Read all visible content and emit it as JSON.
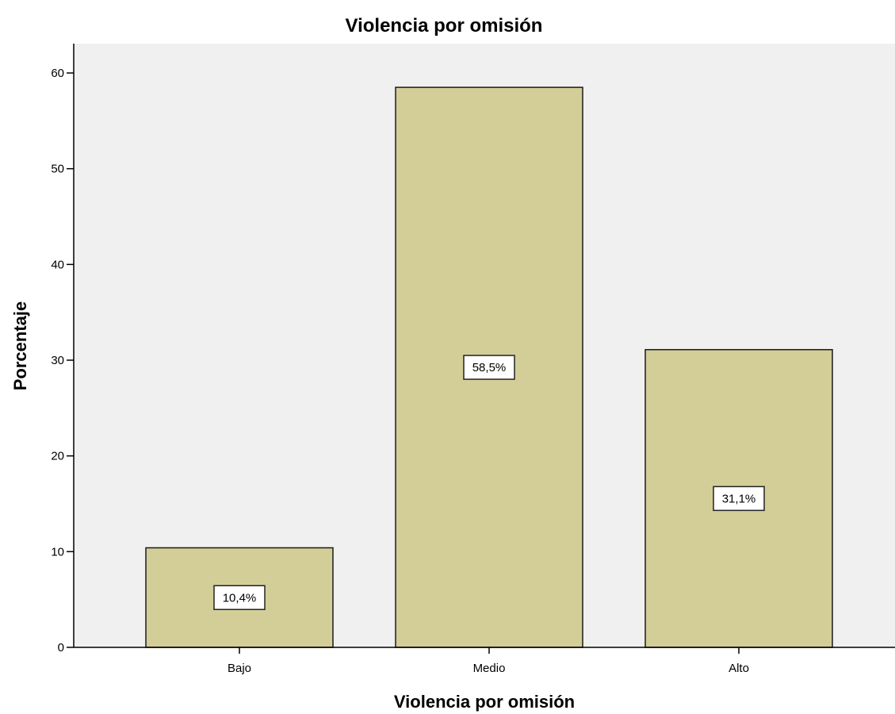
{
  "chart_data": {
    "type": "bar",
    "title": "Violencia por omisión",
    "xlabel": "Violencia por omisión",
    "ylabel": "Porcentaje",
    "categories": [
      "Bajo",
      "Medio",
      "Alto"
    ],
    "values": [
      10.4,
      58.5,
      31.1
    ],
    "data_labels": [
      "10,4%",
      "58,5%",
      "31,1%"
    ],
    "ylim": [
      0,
      63
    ],
    "yticks": [
      0,
      10,
      20,
      30,
      40,
      50,
      60
    ],
    "grid": false,
    "legend": "none",
    "colors": {
      "bar_fill": "#d3ce98",
      "bar_stroke": "#1a1a1a",
      "plot_background": "#f0f0f0",
      "axis": "#000000",
      "label_box_fill": "#ffffff"
    }
  }
}
